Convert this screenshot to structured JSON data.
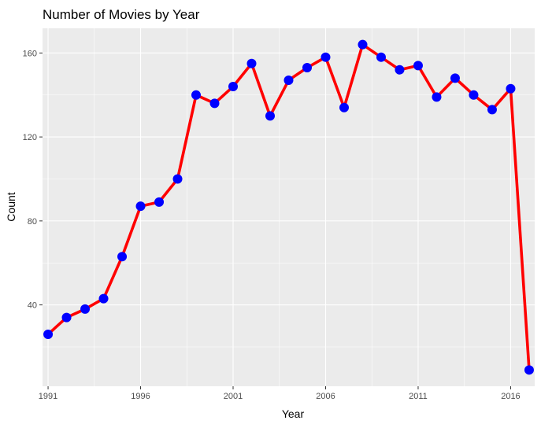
{
  "chart_data": {
    "type": "line",
    "title": "Number of Movies by Year",
    "xlabel": "Year",
    "ylabel": "Count",
    "x": [
      1991,
      1992,
      1993,
      1994,
      1995,
      1996,
      1997,
      1998,
      1999,
      2000,
      2001,
      2002,
      2003,
      2004,
      2005,
      2006,
      2007,
      2008,
      2009,
      2010,
      2011,
      2012,
      2013,
      2014,
      2015,
      2016,
      2017
    ],
    "series": [
      {
        "values": [
          26,
          34,
          38,
          43,
          63,
          87,
          89,
          100,
          140,
          136,
          144,
          155,
          130,
          147,
          153,
          158,
          134,
          164,
          158,
          152,
          154,
          139,
          148,
          140,
          133,
          143,
          9
        ],
        "line_color": "#ff0000",
        "point_color": "#0000ff"
      }
    ],
    "xticks": [
      1991,
      1996,
      2001,
      2006,
      2011,
      2016
    ],
    "yticks": [
      40,
      80,
      120,
      160
    ],
    "xlim": [
      1990.7,
      2017.3
    ],
    "ylim": [
      1.25,
      171.75
    ],
    "grid": true,
    "panel_background": "#ebebeb",
    "grid_color": "#ffffff"
  }
}
